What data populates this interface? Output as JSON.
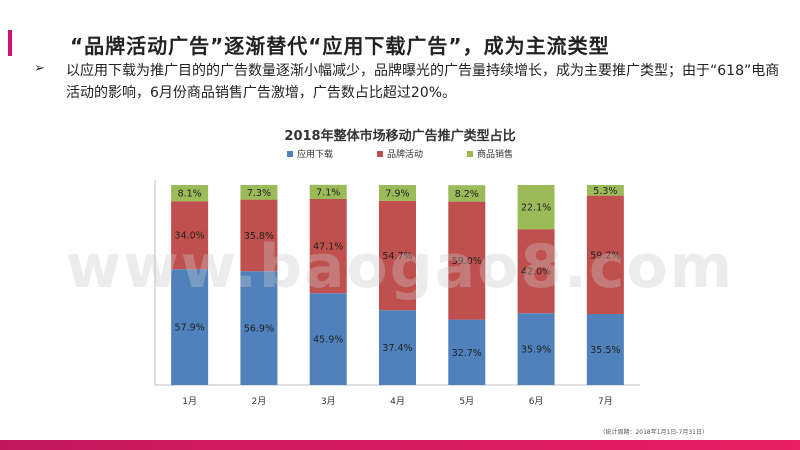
{
  "header": {
    "title": "“品牌活动广告”逐渐替代“应用下载广告”，成为主流类型"
  },
  "bullet": {
    "marker": "➢",
    "text": "以应用下载为推广目的的广告数量逐渐小幅减少，品牌曝光的广告量持续增长，成为主要推广类型；由于“618”电商活动的影响，6月份商品销售广告激增，广告数占比超过20%。"
  },
  "watermark": {
    "text": "www.baogao8.com"
  },
  "footnote": {
    "text": "（统计周期：2018年1月1日-7月31日）"
  },
  "colors": {
    "accent": "#d6126f",
    "bottom_bar_start": "#c2185b",
    "bottom_bar_end": "#e91e63",
    "series_app": "#4f81bd",
    "series_brand": "#c0504d",
    "series_sales": "#9bbb59"
  },
  "chart_data": {
    "type": "bar",
    "stacked": true,
    "title": "2018年整体市场移动广告推广类型占比",
    "categories": [
      "1月",
      "2月",
      "3月",
      "4月",
      "5月",
      "6月",
      "7月"
    ],
    "series": [
      {
        "name": "应用下载",
        "values": [
          57.9,
          56.9,
          45.9,
          37.4,
          32.7,
          35.9,
          35.5
        ],
        "labels": [
          "57.9%",
          "56.9%",
          "45.9%",
          "37.4%",
          "32.7%",
          "35.9%",
          "35.5%"
        ]
      },
      {
        "name": "品牌活动",
        "values": [
          34.0,
          35.8,
          47.1,
          54.7,
          59.0,
          42.0,
          59.2
        ],
        "labels": [
          "34.0%",
          "35.8%",
          "47.1%",
          "54.7%",
          "59.0%",
          "42.0%",
          "59.2%"
        ]
      },
      {
        "name": "商品销售",
        "values": [
          8.1,
          7.3,
          7.1,
          7.9,
          8.2,
          22.1,
          5.3
        ],
        "labels": [
          "8.1%",
          "7.3%",
          "7.1%",
          "7.9%",
          "8.2%",
          "22.1%",
          "5.3%"
        ]
      }
    ],
    "ylim": [
      0,
      100
    ],
    "legend_position": "top",
    "grid": false
  }
}
